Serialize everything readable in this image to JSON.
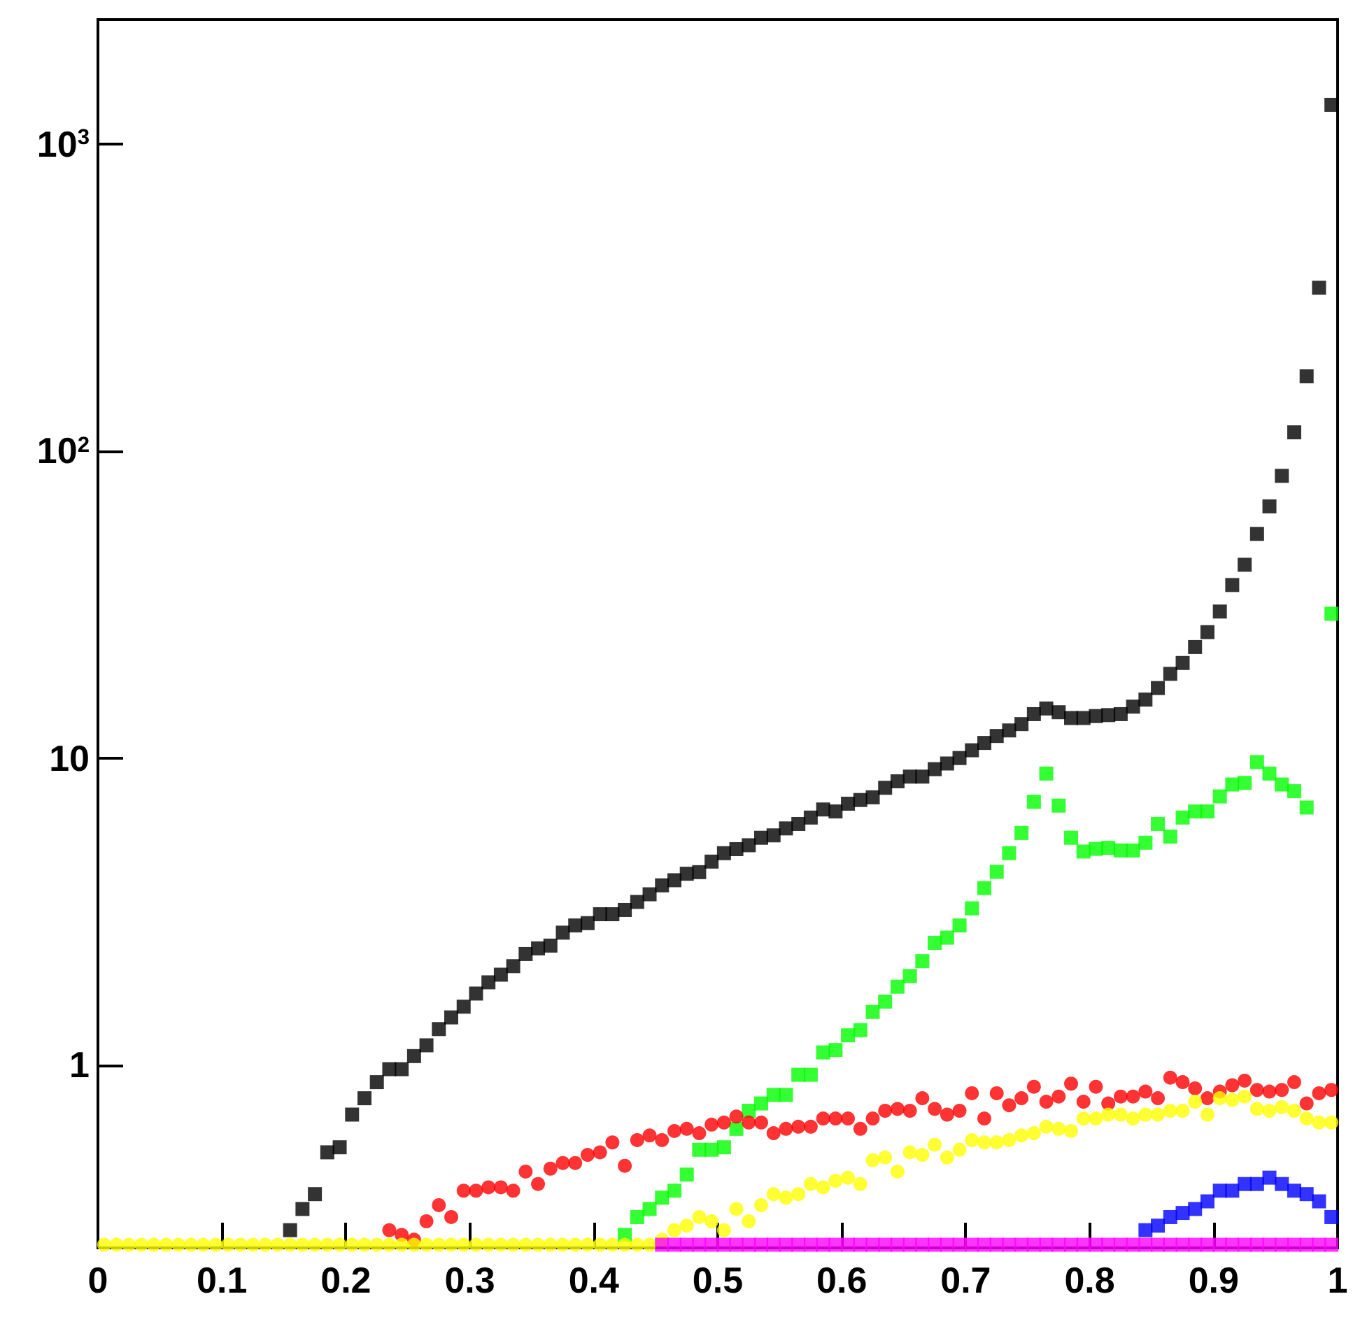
{
  "chart_data": {
    "type": "scatter",
    "log": "y",
    "x": [
      0.005,
      0.015,
      0.025,
      0.035,
      0.045,
      0.055,
      0.065,
      0.075,
      0.085,
      0.095,
      0.105,
      0.115,
      0.125,
      0.135,
      0.145,
      0.155,
      0.165,
      0.175,
      0.185,
      0.195,
      0.205,
      0.215,
      0.225,
      0.235,
      0.245,
      0.255,
      0.265,
      0.275,
      0.285,
      0.295,
      0.305,
      0.315,
      0.325,
      0.335,
      0.345,
      0.355,
      0.365,
      0.375,
      0.385,
      0.395,
      0.405,
      0.415,
      0.425,
      0.435,
      0.445,
      0.455,
      0.465,
      0.475,
      0.485,
      0.495,
      0.505,
      0.515,
      0.525,
      0.535,
      0.545,
      0.555,
      0.565,
      0.575,
      0.585,
      0.595,
      0.605,
      0.615,
      0.625,
      0.635,
      0.645,
      0.655,
      0.665,
      0.675,
      0.685,
      0.695,
      0.705,
      0.715,
      0.725,
      0.735,
      0.745,
      0.755,
      0.765,
      0.775,
      0.785,
      0.795,
      0.805,
      0.815,
      0.825,
      0.835,
      0.845,
      0.855,
      0.865,
      0.875,
      0.885,
      0.895,
      0.905,
      0.915,
      0.925,
      0.935,
      0.945,
      0.955,
      0.965,
      0.975,
      0.985,
      0.995
    ],
    "xlim": [
      0,
      1
    ],
    "xticks": [
      0,
      0.1,
      0.2,
      0.3,
      0.4,
      0.5,
      0.6,
      0.7,
      0.8,
      0.9,
      1
    ],
    "ylim": [
      0.254,
      2540
    ],
    "yticks": [
      1,
      10,
      {
        "value": 100,
        "label": "10$^{2}$"
      },
      {
        "value": 1000,
        "label": "10$^{3}$"
      }
    ],
    "series": [
      {
        "color": "#000000",
        "marker": "square",
        "values": [
          null,
          null,
          null,
          null,
          null,
          null,
          null,
          null,
          null,
          null,
          null,
          null,
          null,
          null,
          null,
          0.29,
          0.34,
          0.38,
          0.52,
          0.54,
          0.69,
          0.78,
          0.88,
          0.97,
          0.97,
          1.07,
          1.16,
          1.31,
          1.43,
          1.55,
          1.71,
          1.86,
          1.97,
          2.1,
          2.3,
          2.4,
          2.45,
          2.7,
          2.85,
          2.9,
          3.1,
          3.1,
          3.2,
          3.4,
          3.6,
          3.85,
          4.0,
          4.2,
          4.25,
          4.6,
          4.9,
          5.05,
          5.2,
          5.5,
          5.6,
          5.9,
          6.1,
          6.4,
          6.8,
          6.7,
          7.1,
          7.3,
          7.45,
          8.0,
          8.4,
          8.7,
          8.7,
          9.2,
          9.6,
          10,
          10.6,
          11.2,
          11.8,
          12.3,
          12.9,
          13.9,
          14.5,
          14.1,
          13.5,
          13.5,
          13.7,
          13.8,
          13.9,
          14.7,
          15.5,
          16.9,
          18.8,
          20.4,
          23,
          25.7,
          30,
          36.6,
          42.6,
          53.7,
          66,
          83,
          115,
          175,
          340,
          1340
        ]
      },
      {
        "color": "#00ff00",
        "marker": "square",
        "values": [
          null,
          null,
          null,
          null,
          null,
          null,
          null,
          null,
          null,
          null,
          null,
          null,
          null,
          null,
          null,
          null,
          null,
          null,
          null,
          null,
          null,
          null,
          null,
          null,
          null,
          null,
          null,
          null,
          null,
          null,
          null,
          null,
          null,
          null,
          null,
          null,
          null,
          null,
          null,
          null,
          null,
          null,
          0.28,
          0.32,
          0.34,
          0.37,
          0.39,
          0.44,
          0.53,
          0.53,
          0.54,
          0.62,
          0.71,
          0.75,
          0.8,
          0.8,
          0.93,
          0.93,
          1.1,
          1.12,
          1.25,
          1.3,
          1.49,
          1.61,
          1.8,
          1.95,
          2.18,
          2.5,
          2.6,
          2.85,
          3.24,
          3.77,
          4.26,
          4.9,
          5.7,
          7.2,
          8.9,
          7.0,
          5.5,
          4.96,
          5.06,
          5.1,
          5.0,
          5.0,
          5.3,
          6.1,
          5.55,
          6.4,
          6.7,
          6.7,
          7.5,
          8.2,
          8.3,
          9.7,
          8.9,
          8.2,
          7.8,
          6.9,
          null,
          29.5
        ]
      },
      {
        "color": "#ff0000",
        "marker": "circle",
        "values": [
          null,
          null,
          null,
          null,
          null,
          null,
          null,
          null,
          null,
          null,
          null,
          null,
          null,
          null,
          null,
          null,
          null,
          null,
          null,
          null,
          null,
          null,
          null,
          0.29,
          0.28,
          0.27,
          0.31,
          0.35,
          0.32,
          0.39,
          0.39,
          0.4,
          0.4,
          0.39,
          0.45,
          0.41,
          0.46,
          0.48,
          0.48,
          0.51,
          0.52,
          0.56,
          0.47,
          0.57,
          0.59,
          0.57,
          0.61,
          0.62,
          0.6,
          0.64,
          0.65,
          0.68,
          0.65,
          0.65,
          0.6,
          0.62,
          0.63,
          0.63,
          0.67,
          0.67,
          0.67,
          0.62,
          0.67,
          0.71,
          0.72,
          0.71,
          0.78,
          0.72,
          0.69,
          0.71,
          0.81,
          0.67,
          0.81,
          0.74,
          0.78,
          0.85,
          0.76,
          0.79,
          0.87,
          0.76,
          0.85,
          0.75,
          0.79,
          0.79,
          0.82,
          0.78,
          0.91,
          0.88,
          0.84,
          0.78,
          0.82,
          0.86,
          0.89,
          0.83,
          0.82,
          0.83,
          0.88,
          0.75,
          0.81,
          0.83
        ]
      },
      {
        "color": "#ffff00",
        "marker": "circle",
        "values": [
          0.26,
          0.26,
          0.26,
          0.26,
          0.26,
          0.26,
          0.26,
          0.26,
          0.26,
          0.26,
          0.26,
          0.26,
          0.26,
          0.26,
          0.26,
          0.26,
          0.26,
          0.26,
          0.26,
          0.26,
          0.26,
          0.26,
          0.26,
          0.26,
          0.26,
          0.26,
          0.26,
          0.26,
          0.26,
          0.26,
          0.26,
          0.26,
          0.26,
          0.26,
          0.26,
          0.26,
          0.26,
          0.26,
          0.26,
          0.26,
          0.26,
          0.26,
          0.26,
          0.26,
          0.26,
          0.27,
          0.29,
          0.3,
          0.32,
          0.31,
          0.29,
          0.34,
          0.31,
          0.35,
          0.38,
          0.37,
          0.38,
          0.41,
          0.4,
          0.42,
          0.43,
          0.41,
          0.49,
          0.5,
          0.45,
          0.52,
          0.51,
          0.55,
          0.5,
          0.53,
          0.57,
          0.56,
          0.56,
          0.57,
          0.59,
          0.6,
          0.63,
          0.62,
          0.61,
          0.67,
          0.67,
          0.69,
          0.69,
          0.67,
          0.69,
          0.69,
          0.71,
          0.71,
          0.76,
          0.69,
          0.78,
          0.77,
          0.79,
          0.72,
          0.71,
          0.73,
          0.71,
          0.67,
          0.65,
          0.65
        ]
      },
      {
        "color": "#0000ff",
        "marker": "square",
        "values": [
          null,
          null,
          null,
          null,
          null,
          null,
          null,
          null,
          null,
          null,
          null,
          null,
          null,
          null,
          null,
          null,
          null,
          null,
          null,
          null,
          null,
          null,
          null,
          null,
          null,
          null,
          null,
          null,
          null,
          null,
          null,
          null,
          null,
          null,
          null,
          null,
          null,
          null,
          null,
          null,
          null,
          null,
          null,
          null,
          null,
          null,
          null,
          null,
          null,
          null,
          null,
          null,
          null,
          null,
          null,
          null,
          null,
          null,
          null,
          null,
          null,
          null,
          null,
          null,
          null,
          null,
          null,
          null,
          null,
          null,
          null,
          null,
          null,
          null,
          null,
          null,
          null,
          null,
          null,
          null,
          null,
          null,
          null,
          null,
          0.29,
          0.3,
          0.32,
          0.33,
          0.34,
          0.36,
          0.39,
          0.39,
          0.41,
          0.41,
          0.43,
          0.41,
          0.39,
          0.38,
          0.36,
          0.32
        ]
      },
      {
        "color": "#ff00ff",
        "marker": "square",
        "values": [
          null,
          null,
          null,
          null,
          null,
          null,
          null,
          null,
          null,
          null,
          null,
          null,
          null,
          null,
          null,
          null,
          null,
          null,
          null,
          null,
          null,
          null,
          null,
          null,
          null,
          null,
          null,
          null,
          null,
          null,
          null,
          null,
          null,
          null,
          null,
          null,
          null,
          null,
          null,
          null,
          null,
          null,
          null,
          null,
          null,
          0.26,
          0.26,
          0.26,
          0.26,
          0.26,
          0.26,
          0.26,
          0.26,
          0.26,
          0.26,
          0.26,
          0.26,
          0.26,
          0.26,
          0.26,
          0.26,
          0.26,
          0.26,
          0.26,
          0.26,
          0.26,
          0.26,
          0.26,
          0.26,
          0.26,
          0.26,
          0.26,
          0.26,
          0.26,
          0.26,
          0.26,
          0.26,
          0.26,
          0.26,
          0.26,
          0.26,
          0.26,
          0.26,
          0.26,
          0.26,
          0.26,
          0.26,
          0.26,
          0.26,
          0.26,
          0.26,
          0.26,
          0.26,
          0.26,
          0.26,
          0.26,
          0.26,
          0.26,
          0.26,
          0.26
        ]
      }
    ]
  }
}
